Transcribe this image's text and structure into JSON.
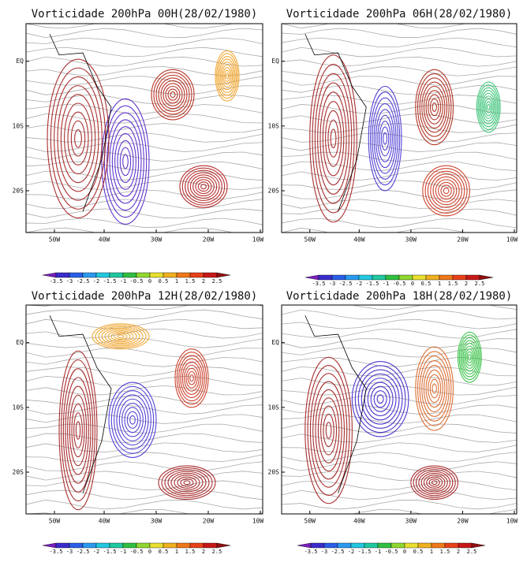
{
  "panels": [
    {
      "title": "Vorticidade 200hPa 00H(28/02/1980)",
      "xticks": [
        "50W",
        "40W",
        "30W",
        "20W",
        "10W"
      ],
      "yticks": [
        "EQ",
        "10S",
        "20S"
      ]
    },
    {
      "title": "Vorticidade 200hPa 06H(28/02/1980)",
      "xticks": [
        "50W",
        "40W",
        "30W",
        "20W",
        "10W"
      ],
      "yticks": [
        "EQ",
        "10S",
        "20S"
      ]
    },
    {
      "title": "Vorticidade 200hPa 12H(28/02/1980)",
      "xticks": [
        "50W",
        "40W",
        "30W",
        "20W",
        "10W"
      ],
      "yticks": [
        "EQ",
        "10S",
        "20S"
      ]
    },
    {
      "title": "Vorticidade 200hPa 18H(28/02/1980)",
      "xticks": [
        "50W",
        "40W",
        "30W",
        "20W",
        "10W"
      ],
      "yticks": [
        "EQ",
        "10S",
        "20S"
      ]
    }
  ],
  "colorbar": {
    "levels": [
      -3.5,
      -3,
      -2.5,
      -2,
      -1.5,
      -1,
      -0.5,
      0,
      0.5,
      1,
      1.5,
      2,
      2.5
    ],
    "colors": [
      "#7a1fc0",
      "#3a2ccc",
      "#2a5ee8",
      "#2a9af0",
      "#22c8e0",
      "#20c8a0",
      "#30c040",
      "#90d830",
      "#e8e030",
      "#f0b020",
      "#f07818",
      "#e84018",
      "#c81818",
      "#901010"
    ]
  }
}
